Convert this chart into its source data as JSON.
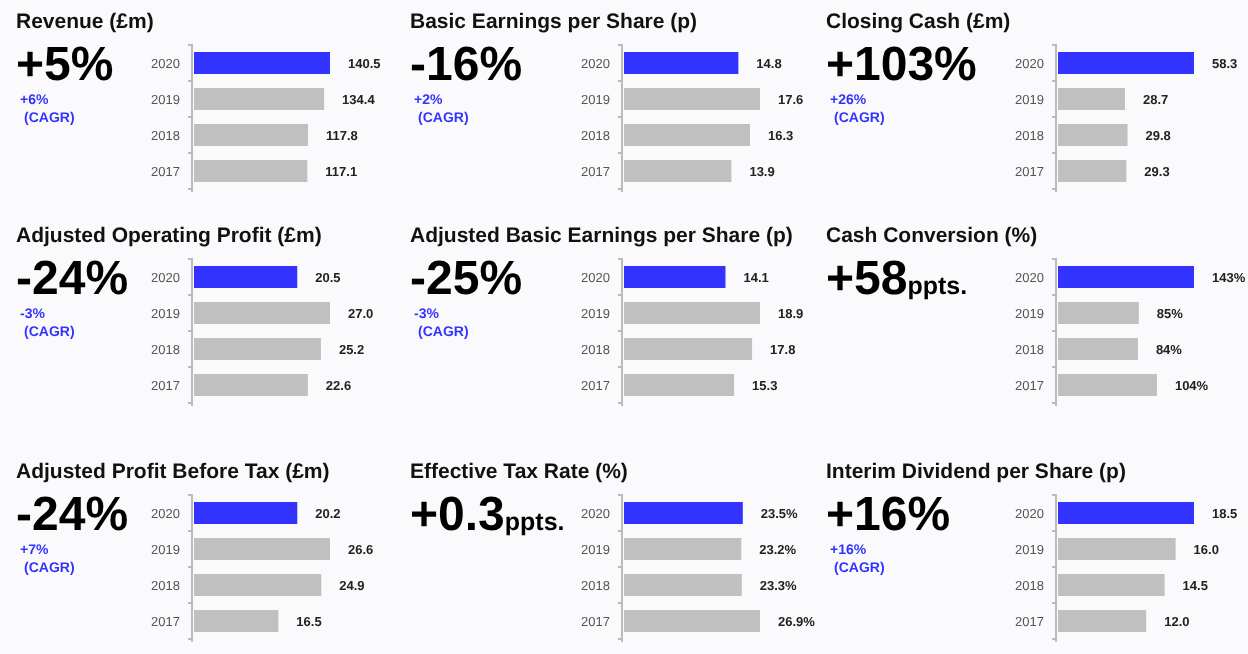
{
  "chart_data": [
    {
      "type": "bar",
      "orientation": "horizontal",
      "title": "Revenue (£m)",
      "subtitle": "+5%",
      "annotations": [
        "+6%",
        "(CAGR)"
      ],
      "categories": [
        "2020",
        "2019",
        "2018",
        "2017"
      ],
      "values": [
        140.5,
        134.4,
        117.8,
        117.1
      ],
      "value_labels": [
        "140.5",
        "134.4",
        "117.8",
        "117.1"
      ],
      "colors": [
        "#3333ff",
        "#c0c0c0",
        "#c0c0c0",
        "#c0c0c0"
      ]
    },
    {
      "type": "bar",
      "orientation": "horizontal",
      "title": "Basic Earnings per Share (p)",
      "subtitle": "-16%",
      "annotations": [
        "+2%",
        "(CAGR)"
      ],
      "categories": [
        "2020",
        "2019",
        "2018",
        "2017"
      ],
      "values": [
        14.8,
        17.6,
        16.3,
        13.9
      ],
      "value_labels": [
        "14.8",
        "17.6",
        "16.3",
        "13.9"
      ],
      "colors": [
        "#3333ff",
        "#c0c0c0",
        "#c0c0c0",
        "#c0c0c0"
      ]
    },
    {
      "type": "bar",
      "orientation": "horizontal",
      "title": "Closing Cash (£m)",
      "subtitle": "+103%",
      "annotations": [
        "+26%",
        "(CAGR)"
      ],
      "categories": [
        "2020",
        "2019",
        "2018",
        "2017"
      ],
      "values": [
        58.3,
        28.7,
        29.8,
        29.3
      ],
      "value_labels": [
        "58.3",
        "28.7",
        "29.8",
        "29.3"
      ],
      "colors": [
        "#3333ff",
        "#c0c0c0",
        "#c0c0c0",
        "#c0c0c0"
      ]
    },
    {
      "type": "bar",
      "orientation": "horizontal",
      "title": "Adjusted Operating Profit (£m)",
      "subtitle": "-24%",
      "annotations": [
        "-3%",
        "(CAGR)"
      ],
      "categories": [
        "2020",
        "2019",
        "2018",
        "2017"
      ],
      "values": [
        20.5,
        27.0,
        25.2,
        22.6
      ],
      "value_labels": [
        "20.5",
        "27.0",
        "25.2",
        "22.6"
      ],
      "colors": [
        "#3333ff",
        "#c0c0c0",
        "#c0c0c0",
        "#c0c0c0"
      ]
    },
    {
      "type": "bar",
      "orientation": "horizontal",
      "title": "Adjusted Basic Earnings per Share (p)",
      "subtitle": "-25%",
      "annotations": [
        "-3%",
        "(CAGR)"
      ],
      "categories": [
        "2020",
        "2019",
        "2018",
        "2017"
      ],
      "values": [
        14.1,
        18.9,
        17.8,
        15.3
      ],
      "value_labels": [
        "14.1",
        "18.9",
        "17.8",
        "15.3"
      ],
      "colors": [
        "#3333ff",
        "#c0c0c0",
        "#c0c0c0",
        "#c0c0c0"
      ]
    },
    {
      "type": "bar",
      "orientation": "horizontal",
      "title": "Cash Conversion (%)",
      "subtitle": "+58ppts.",
      "categories": [
        "2020",
        "2019",
        "2018",
        "2017"
      ],
      "values": [
        143,
        85,
        84,
        104
      ],
      "value_labels": [
        "143%",
        "85%",
        "84%",
        "104%"
      ],
      "colors": [
        "#3333ff",
        "#c0c0c0",
        "#c0c0c0",
        "#c0c0c0"
      ]
    },
    {
      "type": "bar",
      "orientation": "horizontal",
      "title": "Adjusted Profit Before Tax (£m)",
      "subtitle": "-24%",
      "annotations": [
        "+7%",
        "(CAGR)"
      ],
      "categories": [
        "2020",
        "2019",
        "2018",
        "2017"
      ],
      "values": [
        20.2,
        26.6,
        24.9,
        16.5
      ],
      "value_labels": [
        "20.2",
        "26.6",
        "24.9",
        "16.5"
      ],
      "colors": [
        "#3333ff",
        "#c0c0c0",
        "#c0c0c0",
        "#c0c0c0"
      ]
    },
    {
      "type": "bar",
      "orientation": "horizontal",
      "title": "Effective Tax Rate (%)",
      "subtitle": "+0.3ppts.",
      "categories": [
        "2020",
        "2019",
        "2018",
        "2017"
      ],
      "values": [
        23.5,
        23.2,
        23.3,
        26.9
      ],
      "value_labels": [
        "23.5%",
        "23.2%",
        "23.3%",
        "26.9%"
      ],
      "colors": [
        "#3333ff",
        "#c0c0c0",
        "#c0c0c0",
        "#c0c0c0"
      ]
    },
    {
      "type": "bar",
      "orientation": "horizontal",
      "title": "Interim Dividend per Share (p)",
      "subtitle": "+16%",
      "annotations": [
        "+16%",
        "(CAGR)"
      ],
      "categories": [
        "2020",
        "2019",
        "2018",
        "2017"
      ],
      "values": [
        18.5,
        16.0,
        14.5,
        12.0
      ],
      "value_labels": [
        "18.5",
        "16.0",
        "14.5",
        "12.0"
      ],
      "colors": [
        "#3333ff",
        "#c0c0c0",
        "#c0c0c0",
        "#c0c0c0"
      ]
    }
  ]
}
